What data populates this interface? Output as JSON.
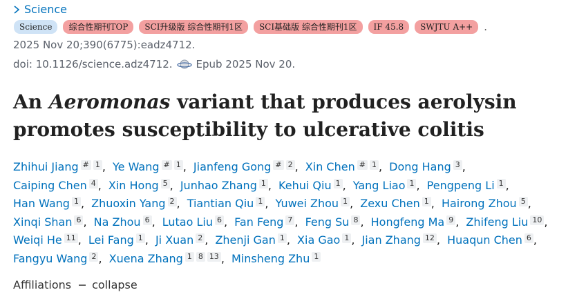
{
  "journal": "Science",
  "badges": [
    {
      "text": "Science",
      "kind": "journal"
    },
    {
      "text": "综合性期刊TOP",
      "kind": "rank"
    },
    {
      "text": "SCI升级版 综合性期刊1区",
      "kind": "rank"
    },
    {
      "text": "SCI基础版 综合性期刊1区",
      "kind": "rank"
    },
    {
      "text": "IF 45.8",
      "kind": "rank"
    },
    {
      "text": "SWJTU A++",
      "kind": "rank"
    }
  ],
  "badges_end": ".",
  "citation": "2025 Nov 20;390(6775):eadz4712.",
  "doi": "doi: 10.1126/science.adz4712.",
  "epub": "Epub 2025 Nov 20.",
  "title": {
    "before": "An ",
    "italic": "Aeromonas",
    "after": " variant that produces aerolysin promotes susceptibility to ulcerative colitis"
  },
  "separator": ",",
  "authors": [
    {
      "name": "Zhihui Jiang",
      "sups": [
        "#",
        "1"
      ]
    },
    {
      "name": "Ye Wang",
      "sups": [
        "#",
        "1"
      ]
    },
    {
      "name": "Jianfeng Gong",
      "sups": [
        "#",
        "2"
      ]
    },
    {
      "name": "Xin Chen",
      "sups": [
        "#",
        "1"
      ]
    },
    {
      "name": "Dong Hang",
      "sups": [
        "3"
      ]
    },
    {
      "name": "Caiping Chen",
      "sups": [
        "4"
      ]
    },
    {
      "name": "Xin Hong",
      "sups": [
        "5"
      ]
    },
    {
      "name": "Junhao Zhang",
      "sups": [
        "1"
      ]
    },
    {
      "name": "Kehui Qiu",
      "sups": [
        "1"
      ]
    },
    {
      "name": "Yang Liao",
      "sups": [
        "1"
      ]
    },
    {
      "name": "Pengpeng Li",
      "sups": [
        "1"
      ]
    },
    {
      "name": "Han Wang",
      "sups": [
        "1"
      ]
    },
    {
      "name": "Zhuoxin Yang",
      "sups": [
        "2"
      ]
    },
    {
      "name": "Tiantian Qiu",
      "sups": [
        "1"
      ]
    },
    {
      "name": "Yuwei Zhou",
      "sups": [
        "1"
      ]
    },
    {
      "name": "Zexu Chen",
      "sups": [
        "1"
      ]
    },
    {
      "name": "Hairong Zhou",
      "sups": [
        "5"
      ]
    },
    {
      "name": "Xinqi Shan",
      "sups": [
        "6"
      ]
    },
    {
      "name": "Na Zhou",
      "sups": [
        "6"
      ]
    },
    {
      "name": "Lutao Liu",
      "sups": [
        "6"
      ]
    },
    {
      "name": "Fan Feng",
      "sups": [
        "7"
      ]
    },
    {
      "name": "Feng Su",
      "sups": [
        "8"
      ]
    },
    {
      "name": "Hongfeng Ma",
      "sups": [
        "9"
      ]
    },
    {
      "name": "Zhifeng Liu",
      "sups": [
        "10"
      ]
    },
    {
      "name": "Weiqi He",
      "sups": [
        "11"
      ]
    },
    {
      "name": "Lei Fang",
      "sups": [
        "1"
      ]
    },
    {
      "name": "Ji Xuan",
      "sups": [
        "2"
      ]
    },
    {
      "name": "Zhenji Gan",
      "sups": [
        "1"
      ]
    },
    {
      "name": "Xia Gao",
      "sups": [
        "1"
      ]
    },
    {
      "name": "Jian Zhang",
      "sups": [
        "12"
      ]
    },
    {
      "name": "Huaqun Chen",
      "sups": [
        "6"
      ]
    },
    {
      "name": "Fangyu Wang",
      "sups": [
        "2"
      ]
    },
    {
      "name": "Xuena Zhang",
      "sups": [
        "1",
        "8",
        "13"
      ]
    },
    {
      "name": "Minsheng Zhu",
      "sups": [
        "1"
      ]
    }
  ],
  "affiliations": "Affiliations",
  "collapse": "collapse"
}
